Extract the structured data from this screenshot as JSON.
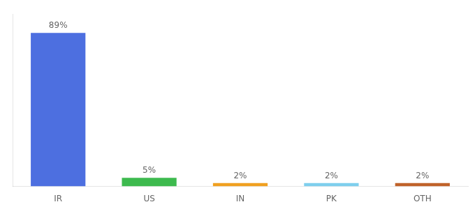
{
  "chart_data": {
    "type": "bar",
    "categories": [
      "IR",
      "US",
      "IN",
      "PK",
      "OTH"
    ],
    "values": [
      89,
      5,
      2,
      2,
      2
    ],
    "value_labels": [
      "89%",
      "5%",
      "2%",
      "2%",
      "2%"
    ],
    "colors": [
      "#4d6fe0",
      "#3dba4e",
      "#f0a020",
      "#7ecfed",
      "#c0622a"
    ],
    "ylim": [
      0,
      100
    ],
    "data_labels": true,
    "grid": false,
    "tick_labels": "x"
  }
}
